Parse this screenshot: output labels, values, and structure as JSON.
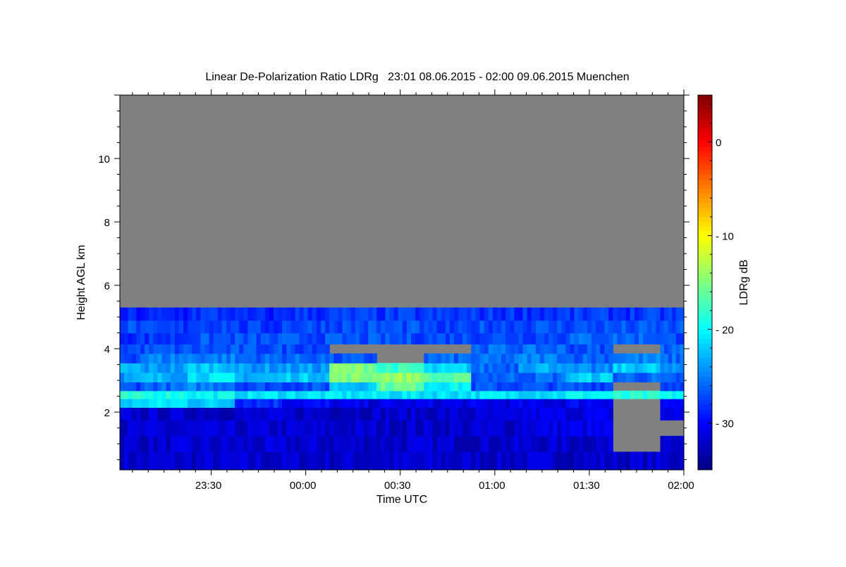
{
  "chart_data": {
    "type": "heatmap",
    "title": "Linear De-Polarization Ratio LDRg   23:01 08.06.2015 - 02:00 09.06.2015 Muenchen",
    "xlabel": "Time UTC",
    "ylabel": "Height AGL km",
    "colorbar_label": "LDRg dB",
    "x_unit": "minutes after 23:00 UTC",
    "xlim": [
      1,
      180
    ],
    "ylim": [
      0.18,
      12
    ],
    "clim": [
      -35,
      5
    ],
    "colormap": "jet",
    "no_data_color": "#808080",
    "x_ticks": [
      {
        "value": 30,
        "label": "23:30"
      },
      {
        "value": 60,
        "label": "00:00"
      },
      {
        "value": 90,
        "label": "00:30"
      },
      {
        "value": 120,
        "label": "01:00"
      },
      {
        "value": 150,
        "label": "01:30"
      },
      {
        "value": 180,
        "label": "02:00"
      }
    ],
    "y_ticks": [
      {
        "value": 2,
        "label": "2"
      },
      {
        "value": 4,
        "label": "4"
      },
      {
        "value": 6,
        "label": "6"
      },
      {
        "value": 8,
        "label": "8"
      },
      {
        "value": 10,
        "label": "10"
      }
    ],
    "c_ticks": [
      {
        "value": 0,
        "label": "0"
      },
      {
        "value": -10,
        "label": "-10"
      },
      {
        "value": -20,
        "label": "-20"
      },
      {
        "value": -30,
        "label": "-30"
      }
    ],
    "times": [
      0,
      15,
      30,
      45,
      60,
      75,
      90,
      105,
      120,
      135,
      150,
      165,
      180
    ],
    "heights": [
      0.5,
      1.0,
      1.5,
      2.0,
      2.3,
      2.55,
      2.8,
      3.1,
      3.4,
      3.7,
      4.0,
      4.3,
      4.7,
      5.1
    ],
    "height_top": 5.3,
    "values": [
      [
        -32,
        -32,
        -32,
        -32,
        -32,
        -32,
        -32,
        -32,
        -32,
        -32,
        -32,
        -32,
        -32
      ],
      [
        -32,
        -32,
        -32,
        -32,
        -32,
        -32,
        -32,
        -32,
        -32,
        -32,
        -32,
        null,
        -31
      ],
      [
        -32,
        -32,
        -32,
        -32,
        -32,
        -32,
        -32,
        -32,
        -32,
        -31,
        -31,
        null,
        null
      ],
      [
        -32,
        -32,
        -32,
        -32,
        -32,
        -32,
        -32,
        -32,
        -32,
        -31,
        -31,
        null,
        -31
      ],
      [
        -22,
        -21,
        -22,
        -28,
        -30,
        -31,
        -31,
        -31,
        -31,
        -31,
        -30,
        null,
        -30
      ],
      [
        -19,
        -19,
        -20,
        -21,
        -21,
        -21,
        -21,
        -21,
        -21,
        -21,
        -20,
        -19,
        -20
      ],
      [
        -27,
        -26,
        -25,
        -27,
        -27,
        -22,
        -16,
        -20,
        -27,
        -27,
        -27,
        null,
        -27
      ],
      [
        -24,
        -23,
        -21,
        -23,
        -22,
        -15,
        -14,
        -17,
        -26,
        -26,
        -22,
        -26,
        -27
      ],
      [
        -23,
        -24,
        -22,
        -24,
        -24,
        -15,
        -18,
        -22,
        -26,
        -23,
        -25,
        -22,
        -25
      ],
      [
        -27,
        -25,
        -25,
        -26,
        -26,
        -27,
        null,
        -26,
        -26,
        -25,
        -26,
        -25,
        -26
      ],
      [
        -27,
        -27,
        -27,
        -27,
        -27,
        null,
        null,
        null,
        -26,
        -26,
        -27,
        null,
        -26
      ],
      [
        -28,
        -28,
        -27,
        -27,
        -27,
        -27,
        -27,
        -27,
        -27,
        -27,
        -26,
        -26,
        -27
      ],
      [
        -27,
        -28,
        -27,
        -28,
        -27,
        -27,
        -27,
        -28,
        -27,
        -27,
        -27,
        -27,
        -27
      ],
      [
        -29,
        -29,
        -28,
        -29,
        -28,
        -28,
        -28,
        -28,
        -28,
        -28,
        -28,
        -28,
        -28
      ]
    ]
  }
}
